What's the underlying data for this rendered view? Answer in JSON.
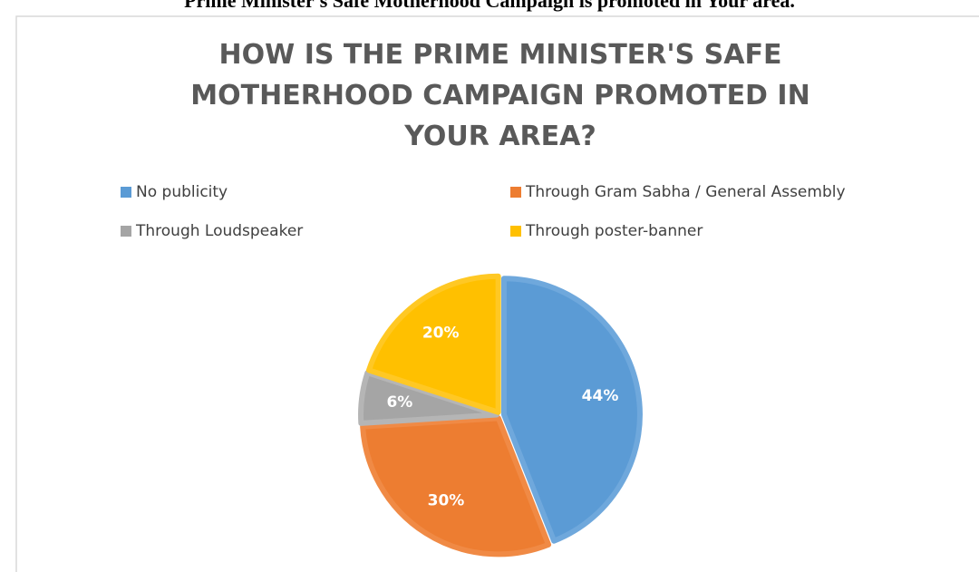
{
  "caption": "Prime Minister's Safe Motherhood Campaign is promoted in Your area.",
  "chart_data": {
    "type": "pie",
    "title": "HOW IS THE PRIME MINISTER'S SAFE MOTHERHOOD CAMPAIGN PROMOTED IN YOUR AREA?",
    "categories": [
      "No publicity",
      "Through Gram Sabha / General Assembly",
      "Through Loudspeaker",
      "Through poster-banner"
    ],
    "values": [
      44,
      30,
      6,
      20
    ],
    "value_labels": [
      "44%",
      "30%",
      "6%",
      "20%"
    ],
    "colors": [
      "#5b9bd5",
      "#ed7d31",
      "#a5a5a5",
      "#ffc000"
    ],
    "legend": "top"
  }
}
